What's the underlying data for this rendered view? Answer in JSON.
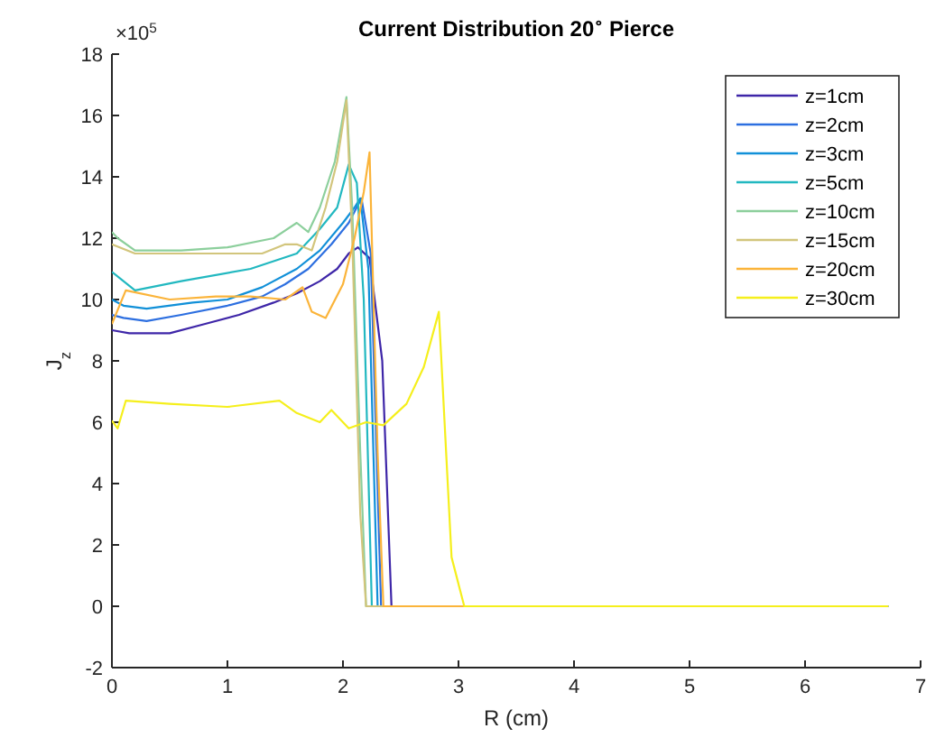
{
  "chart_data": {
    "type": "line",
    "title": "Current Distribution 20$^{∘}$ Pierce",
    "xlabel": "R (cm)",
    "ylabel": "J$_{z}$",
    "annotations": [
      "×10$^{5}$"
    ],
    "xlim": [
      0,
      7
    ],
    "xticks": [
      0,
      1,
      2,
      3,
      4,
      5,
      6,
      7
    ],
    "ylim": [
      -2,
      18
    ],
    "yticks": [
      -2,
      0,
      2,
      4,
      6,
      8,
      10,
      12,
      14,
      16,
      18
    ],
    "grid": false,
    "legend": "top right",
    "marker": "none",
    "line_style": "solid",
    "series": [
      {
        "name": "z=1cm",
        "color": "#3e26a8",
        "x": [
          0,
          0.15,
          0.5,
          0.8,
          1.1,
          1.4,
          1.6,
          1.8,
          1.95,
          2.05,
          2.13,
          2.23,
          2.34,
          2.42,
          6.72
        ],
        "values": [
          9.0,
          8.9,
          8.9,
          9.2,
          9.5,
          9.9,
          10.2,
          10.6,
          11.0,
          11.5,
          11.7,
          11.35,
          8.0,
          0,
          0
        ]
      },
      {
        "name": "z=2cm",
        "color": "#2d6fe0",
        "x": [
          0,
          0.1,
          0.3,
          0.6,
          1.0,
          1.3,
          1.5,
          1.7,
          1.9,
          2.05,
          2.16,
          2.24,
          2.33,
          6.72
        ],
        "values": [
          9.5,
          9.4,
          9.3,
          9.5,
          9.8,
          10.1,
          10.5,
          11.0,
          11.8,
          12.5,
          13.3,
          11.5,
          0,
          0
        ]
      },
      {
        "name": "z=3cm",
        "color": "#1190d8",
        "x": [
          0,
          0.1,
          0.3,
          0.7,
          1.0,
          1.3,
          1.6,
          1.8,
          2.0,
          2.1,
          2.15,
          2.22,
          2.3,
          6.72
        ],
        "values": [
          10.0,
          9.8,
          9.7,
          9.9,
          10.0,
          10.4,
          11.0,
          11.6,
          12.5,
          13.0,
          13.3,
          11.0,
          0,
          0
        ]
      },
      {
        "name": "z=5cm",
        "color": "#22b8c0",
        "x": [
          0,
          0.2,
          0.6,
          1.2,
          1.6,
          1.8,
          1.95,
          2.05,
          2.12,
          2.18,
          2.25,
          6.72
        ],
        "values": [
          10.9,
          10.3,
          10.6,
          11.0,
          11.5,
          12.3,
          13.0,
          14.4,
          13.8,
          10.0,
          0,
          0
        ]
      },
      {
        "name": "z=10cm",
        "color": "#8ccf9c",
        "x": [
          0,
          0.05,
          0.2,
          0.6,
          1.0,
          1.4,
          1.6,
          1.7,
          1.8,
          1.93,
          2.03,
          2.08,
          2.15,
          2.2,
          6.72
        ],
        "values": [
          12.2,
          12.0,
          11.6,
          11.6,
          11.7,
          12.0,
          12.5,
          12.2,
          13.0,
          14.5,
          16.6,
          13.0,
          5.0,
          0,
          0
        ]
      },
      {
        "name": "z=15cm",
        "color": "#d2c57c",
        "x": [
          0,
          0.2,
          0.6,
          1.0,
          1.3,
          1.5,
          1.6,
          1.73,
          1.85,
          1.95,
          2.03,
          2.08,
          2.15,
          2.2,
          6.72
        ],
        "values": [
          11.8,
          11.5,
          11.5,
          11.5,
          11.5,
          11.8,
          11.8,
          11.6,
          13.0,
          14.5,
          16.5,
          12.0,
          3.0,
          0,
          0
        ]
      },
      {
        "name": "z=20cm",
        "color": "#fbb43a",
        "x": [
          0,
          0.12,
          0.5,
          0.9,
          1.2,
          1.5,
          1.65,
          1.73,
          1.85,
          2.0,
          2.1,
          2.18,
          2.23,
          2.3,
          2.35,
          6.72
        ],
        "values": [
          9.2,
          10.3,
          10.0,
          10.1,
          10.1,
          10.0,
          10.4,
          9.6,
          9.4,
          10.5,
          12.0,
          13.5,
          14.8,
          5.0,
          0,
          0
        ]
      },
      {
        "name": "z=30cm",
        "color": "#f5ef1c",
        "x": [
          0,
          0.05,
          0.12,
          0.5,
          1.0,
          1.45,
          1.6,
          1.8,
          1.9,
          2.05,
          2.2,
          2.35,
          2.55,
          2.7,
          2.83,
          2.94,
          3.05,
          6.72
        ],
        "values": [
          6.05,
          5.8,
          6.7,
          6.6,
          6.5,
          6.7,
          6.3,
          6.0,
          6.4,
          5.8,
          6.0,
          5.9,
          6.6,
          7.8,
          9.6,
          1.6,
          0,
          0
        ]
      }
    ]
  }
}
